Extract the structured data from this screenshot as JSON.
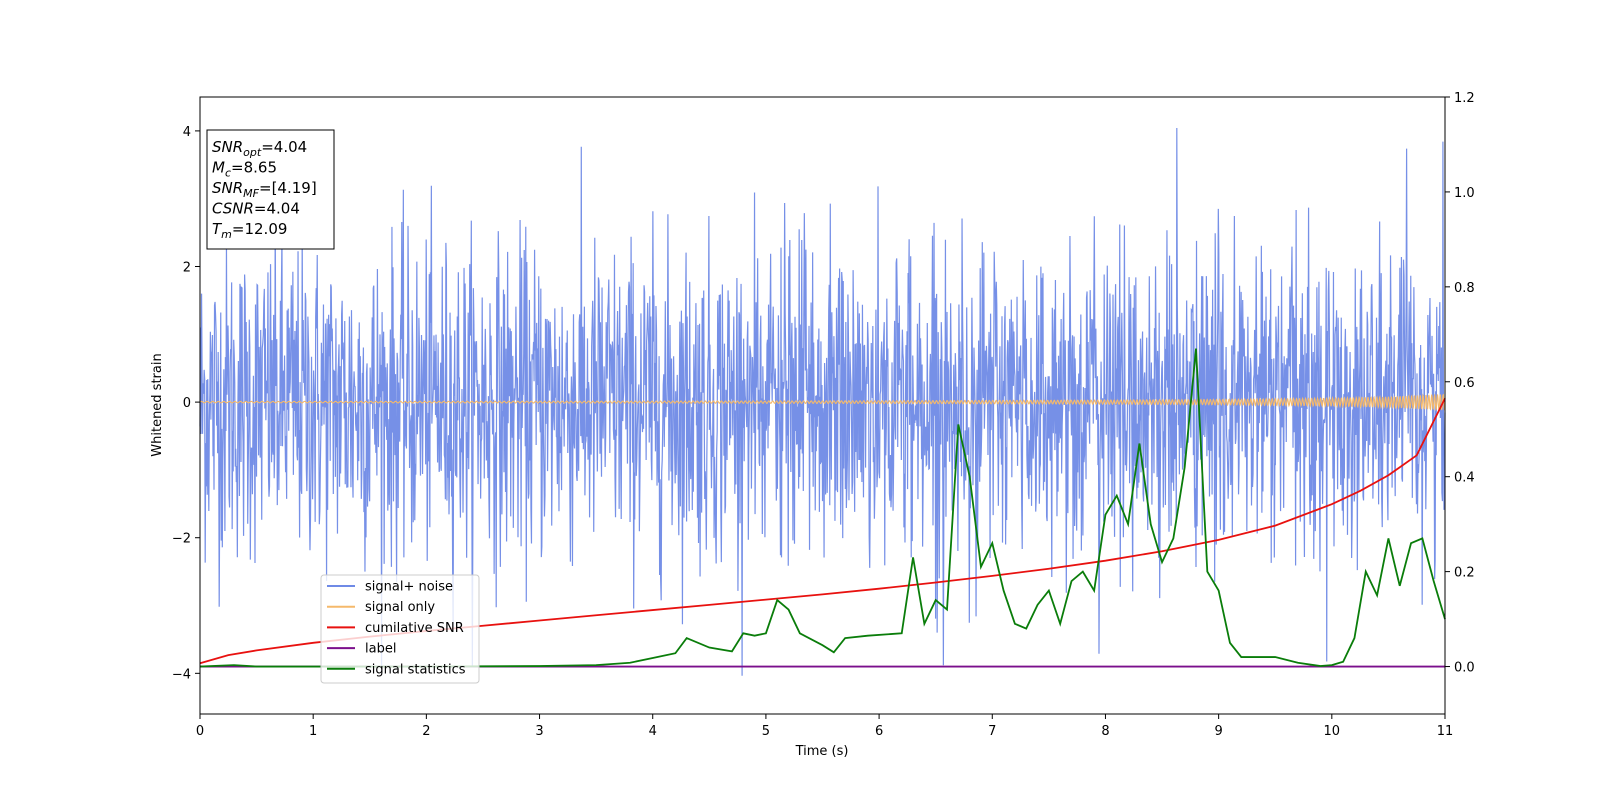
{
  "chart_data": {
    "type": "line",
    "xlabel": "Time (s)",
    "ylabel_left": "Whitened strain",
    "xlim": [
      0,
      11
    ],
    "ylim_left": [
      -4.6,
      4.5
    ],
    "ylim_right": [
      -0.1,
      1.2
    ],
    "x_ticks": [
      "0",
      "1",
      "2",
      "3",
      "4",
      "5",
      "6",
      "7",
      "8",
      "9",
      "10",
      "11"
    ],
    "y_ticks_left": [
      "4",
      "2",
      "0",
      "−2",
      "−4"
    ],
    "y_ticks_right": [
      "1.2",
      "1.0",
      "0.8",
      "0.6",
      "0.4",
      "0.2",
      "0.0"
    ],
    "annotation": {
      "lines": [
        {
          "sym": "SNR",
          "sub": "opt",
          "val": "=4.04"
        },
        {
          "sym": "M",
          "sub": "c",
          "val": "=8.65"
        },
        {
          "sym": "SNR",
          "sub": "MF",
          "val": "=[4.19]"
        },
        {
          "sym": "CSNR",
          "sub": "",
          "val": "=4.04"
        },
        {
          "sym": "T",
          "sub": "m",
          "val": "=12.09"
        }
      ]
    },
    "legend": {
      "placement": "lower-left",
      "entries": [
        {
          "label": "signal+ noise",
          "color": "#6f8ae6"
        },
        {
          "label": "signal only",
          "color": "#f5b96b"
        },
        {
          "label": "cumilative SNR",
          "color": "#e8110f"
        },
        {
          "label": "label",
          "color": "#7b0f8c"
        },
        {
          "label": "signal statistics",
          "color": "#0a7d0a"
        }
      ]
    },
    "series": [
      {
        "name": "signal+ noise",
        "axis": "left",
        "description_kind": "noise",
        "color": "#6f8ae6",
        "amplitude_envelope": [
          -4.2,
          4.1
        ],
        "x_range": [
          0,
          11
        ]
      },
      {
        "name": "signal only",
        "axis": "left",
        "color": "#f5b96b",
        "x": [
          0,
          2,
          4,
          6,
          8,
          9,
          10,
          10.5,
          11
        ],
        "amplitude": [
          0.01,
          0.012,
          0.015,
          0.02,
          0.03,
          0.04,
          0.06,
          0.08,
          0.12
        ]
      },
      {
        "name": "cumilative SNR",
        "axis": "right",
        "color": "#e8110f",
        "x": [
          0,
          0.25,
          0.5,
          1,
          1.5,
          2,
          2.5,
          3,
          3.5,
          4,
          4.5,
          5,
          5.5,
          6,
          6.5,
          7,
          7.5,
          8,
          8.5,
          9,
          9.5,
          10,
          10.25,
          10.5,
          10.75,
          11
        ],
        "y": [
          0.007,
          0.024,
          0.034,
          0.05,
          0.063,
          0.075,
          0.086,
          0.097,
          0.108,
          0.119,
          0.13,
          0.141,
          0.152,
          0.164,
          0.177,
          0.191,
          0.206,
          0.223,
          0.243,
          0.267,
          0.297,
          0.342,
          0.37,
          0.403,
          0.445,
          0.565
        ]
      },
      {
        "name": "label",
        "axis": "right",
        "color": "#7b0f8c",
        "x": [
          0,
          11
        ],
        "y": [
          0,
          0
        ]
      },
      {
        "name": "signal statistics",
        "axis": "right",
        "color": "#0a7d0a",
        "x": [
          0,
          0.3,
          0.5,
          1,
          2,
          3,
          3.5,
          3.8,
          4,
          4.2,
          4.3,
          4.5,
          4.7,
          4.8,
          4.9,
          5.0,
          5.1,
          5.2,
          5.3,
          5.5,
          5.6,
          5.7,
          5.9,
          6.2,
          6.3,
          6.4,
          6.5,
          6.6,
          6.7,
          6.8,
          6.9,
          7.0,
          7.1,
          7.2,
          7.3,
          7.4,
          7.5,
          7.6,
          7.7,
          7.8,
          7.9,
          8.0,
          8.1,
          8.2,
          8.3,
          8.4,
          8.5,
          8.6,
          8.7,
          8.8,
          8.9,
          9.0,
          9.1,
          9.2,
          9.5,
          9.7,
          9.9,
          10.0,
          10.1,
          10.2,
          10.3,
          10.4,
          10.5,
          10.6,
          10.7,
          10.8,
          10.9,
          11.0
        ],
        "y": [
          0.0,
          0.003,
          0.0,
          0.0,
          0.0,
          0.001,
          0.003,
          0.008,
          0.018,
          0.028,
          0.06,
          0.04,
          0.032,
          0.07,
          0.065,
          0.07,
          0.14,
          0.12,
          0.07,
          0.045,
          0.03,
          0.06,
          0.065,
          0.07,
          0.23,
          0.09,
          0.14,
          0.12,
          0.51,
          0.4,
          0.21,
          0.26,
          0.16,
          0.09,
          0.08,
          0.13,
          0.16,
          0.09,
          0.18,
          0.2,
          0.16,
          0.32,
          0.36,
          0.3,
          0.47,
          0.3,
          0.22,
          0.27,
          0.42,
          0.67,
          0.2,
          0.16,
          0.05,
          0.02,
          0.02,
          0.008,
          0.001,
          0.003,
          0.01,
          0.06,
          0.2,
          0.15,
          0.27,
          0.17,
          0.26,
          0.27,
          0.18,
          0.1
        ]
      }
    ]
  }
}
